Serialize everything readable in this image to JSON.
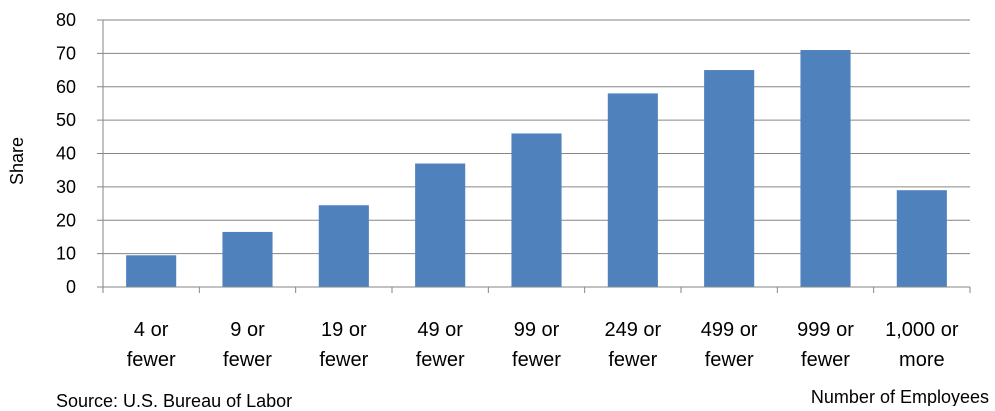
{
  "chart_data": {
    "type": "bar",
    "categories": [
      [
        "4 or",
        "fewer"
      ],
      [
        "9 or",
        "fewer"
      ],
      [
        "19 or",
        "fewer"
      ],
      [
        "49 or",
        "fewer"
      ],
      [
        "99 or",
        "fewer"
      ],
      [
        "249 or",
        "fewer"
      ],
      [
        "499 or",
        "fewer"
      ],
      [
        "999 or",
        "fewer"
      ],
      [
        "1,000 or",
        "more"
      ]
    ],
    "values": [
      9.5,
      16.5,
      24.5,
      37,
      46,
      58,
      65,
      71,
      29
    ],
    "ylabel": "Share",
    "xlabel": "Number of Employees",
    "ylim": [
      0,
      80
    ],
    "yticks": [
      0,
      10,
      20,
      30,
      40,
      50,
      60,
      70,
      80
    ],
    "grid": true,
    "bar_color": "#4F81BD",
    "grid_color": "#868686"
  },
  "source_note": "Source: U.S. Bureau of Labor"
}
